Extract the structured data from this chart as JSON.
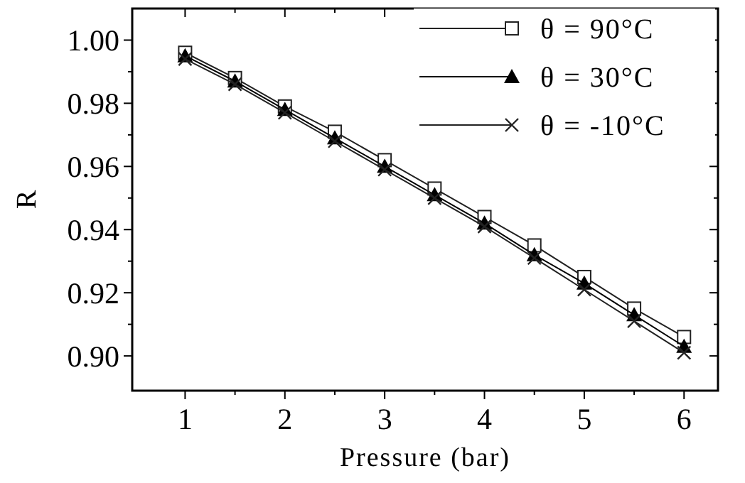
{
  "chart_data": {
    "type": "line",
    "xlabel": "Pressure (bar)",
    "ylabel": "R",
    "x": [
      1,
      1.5,
      2,
      2.5,
      3,
      3.5,
      4,
      4.5,
      5,
      5.5,
      6
    ],
    "xlim": [
      0.47,
      6.34
    ],
    "ylim": [
      0.889,
      1.01
    ],
    "xticks": [
      1,
      {
        "value": 1.5,
        "label": null
      },
      2,
      {
        "value": 2.5,
        "label": null
      },
      3,
      {
        "value": 3.5,
        "label": null
      },
      4,
      {
        "value": 4.5,
        "label": null
      },
      5,
      {
        "value": 5.5,
        "label": null
      },
      6
    ],
    "yticks": [
      {
        "value": 0.9,
        "label": "0.90"
      },
      {
        "value": 0.91,
        "label": null
      },
      {
        "value": 0.92,
        "label": "0.92"
      },
      {
        "value": 0.93,
        "label": null
      },
      {
        "value": 0.94,
        "label": "0.94"
      },
      {
        "value": 0.95,
        "label": null
      },
      {
        "value": 0.96,
        "label": "0.96"
      },
      {
        "value": 0.97,
        "label": null
      },
      {
        "value": 0.98,
        "label": "0.98"
      },
      {
        "value": 0.99,
        "label": null
      },
      {
        "value": 1.0,
        "label": "1.00"
      }
    ],
    "grid": false,
    "legend": "top right",
    "line_style": "solid",
    "series": [
      {
        "name": "θ = 90°C",
        "color": "#222222",
        "marker": "square",
        "values": [
          0.996,
          0.988,
          0.979,
          0.971,
          0.962,
          0.953,
          0.944,
          0.935,
          0.925,
          0.915,
          0.906
        ]
      },
      {
        "name": "θ = 30°C",
        "color": "#000000",
        "marker": "triangle",
        "values": [
          0.995,
          0.987,
          0.978,
          0.969,
          0.96,
          0.951,
          0.942,
          0.932,
          0.923,
          0.913,
          0.903
        ]
      },
      {
        "name": "θ = -10°C",
        "color": "#222222",
        "marker": "cross",
        "values": [
          0.994,
          0.986,
          0.977,
          0.968,
          0.959,
          0.95,
          0.941,
          0.931,
          0.921,
          0.911,
          0.901
        ]
      }
    ]
  }
}
